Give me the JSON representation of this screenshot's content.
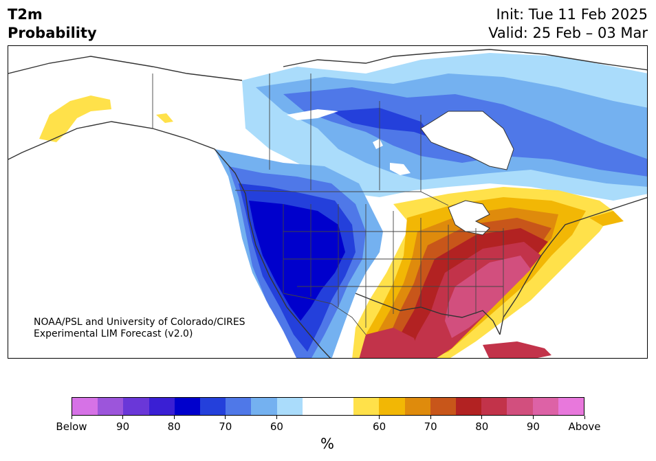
{
  "header": {
    "title_line1": "T2m",
    "title_line2": "Probability",
    "init_text": "Init: Tue 11 Feb 2025",
    "valid_text": "Valid: 25 Feb – 03 Mar"
  },
  "map": {
    "credit_line1": "NOAA/PSL and University of Colorado/CIRES",
    "credit_line2": "Experimental LIM Forecast (v2.0)"
  },
  "colorbar": {
    "unit": "%",
    "tick_labels": [
      "Below",
      "90",
      "80",
      "70",
      "60",
      "60",
      "70",
      "80",
      "90",
      "Above"
    ],
    "colors": {
      "below": [
        "#d672e6",
        "#9c55db",
        "#6a37d8",
        "#3a1fd4",
        "#0000cc",
        "#2440db",
        "#4f78e8",
        "#74b1f0",
        "#aadcfb"
      ],
      "neutral": "#ffffff",
      "above": [
        "#ffe14a",
        "#f2b705",
        "#df8b0c",
        "#c8561a",
        "#b22222",
        "#c2334a",
        "#d24f7e",
        "#dd62a6",
        "#e878dc"
      ]
    }
  }
}
